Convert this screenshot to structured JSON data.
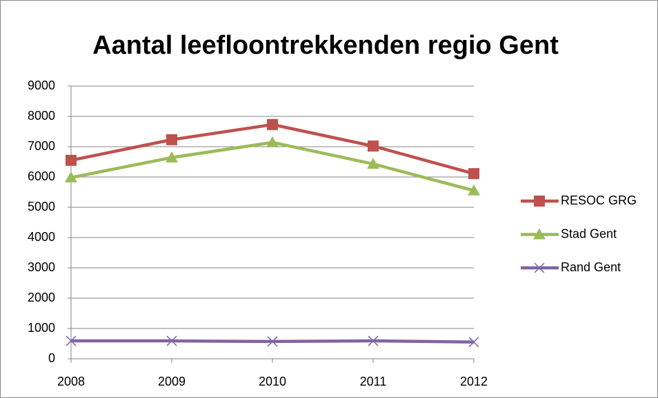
{
  "chart_data": {
    "type": "line",
    "title": "Aantal leefloontrekkenden regio Gent",
    "categories": [
      "2008",
      "2009",
      "2010",
      "2011",
      "2012"
    ],
    "series": [
      {
        "name": "RESOC GRG",
        "color": "#c0504d",
        "marker": "square",
        "values": [
          6550,
          7230,
          7730,
          7020,
          6110
        ]
      },
      {
        "name": "Stad Gent",
        "color": "#9bbb59",
        "marker": "triangle",
        "values": [
          5980,
          6640,
          7140,
          6430,
          5550
        ]
      },
      {
        "name": "Rand Gent",
        "color": "#8064a2",
        "marker": "x",
        "values": [
          590,
          590,
          570,
          590,
          550
        ]
      }
    ],
    "ylim": [
      0,
      9000
    ],
    "yticks": [
      0,
      1000,
      2000,
      3000,
      4000,
      5000,
      6000,
      7000,
      8000,
      9000
    ],
    "grid": true,
    "legend": "right"
  }
}
